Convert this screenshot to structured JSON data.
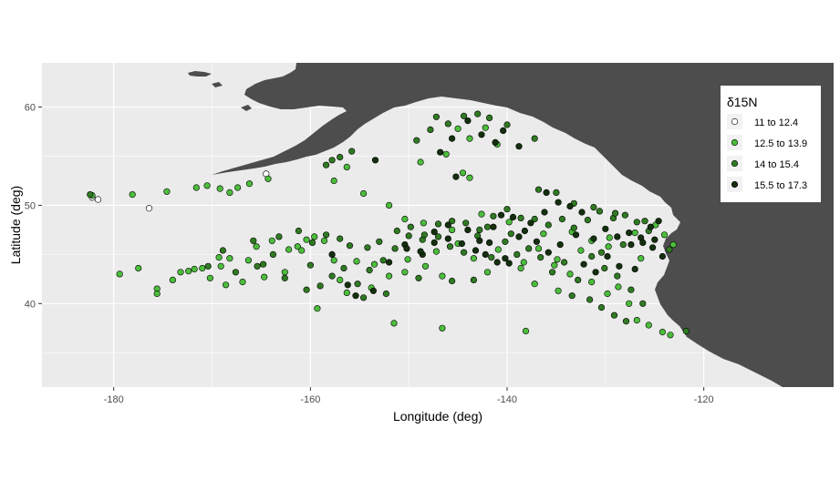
{
  "chart_data": {
    "type": "scatter",
    "title": "",
    "xlabel": "Longitude (deg)",
    "ylabel": "Latitude (deg)",
    "xlim": [
      -187.3,
      -106.8
    ],
    "ylim": [
      31.5,
      64.5
    ],
    "x_ticks": [
      -180,
      -160,
      -140,
      -120
    ],
    "x_tick_labels": [
      "-180",
      "-160",
      "-140",
      "-120"
    ],
    "y_ticks": [
      40,
      50,
      60
    ],
    "y_tick_labels": [
      "40",
      "50",
      "60"
    ],
    "grid": true,
    "panel_background": "#ebebeb",
    "land_color": "#4d4d4d",
    "legend": {
      "title": "δ15N",
      "placement": "right-inside-top",
      "entries": [
        {
          "label": "11 to 12.4",
          "color": "#ffffff"
        },
        {
          "label": "12.5 to 13.9",
          "color": "#4cbd3c"
        },
        {
          "label": "14 to 15.4",
          "color": "#2f7a22"
        },
        {
          "label": "15.5 to 17.3",
          "color": "#14300e"
        }
      ]
    },
    "series": [
      {
        "name": "11 to 12.4",
        "color": "#ffffff",
        "points": [
          [
            -182.2,
            50.8
          ],
          [
            -181.6,
            50.6
          ],
          [
            -176.4,
            49.7
          ],
          [
            -164.5,
            53.2
          ]
        ]
      },
      {
        "name": "12.5 to 13.9",
        "color": "#4cbd3c",
        "points": [
          [
            -182.2,
            51.0
          ],
          [
            -178.1,
            51.1
          ],
          [
            -174.6,
            51.4
          ],
          [
            -171.6,
            51.8
          ],
          [
            -170.5,
            52.0
          ],
          [
            -169.2,
            51.7
          ],
          [
            -168.2,
            51.3
          ],
          [
            -167.4,
            51.8
          ],
          [
            -166.2,
            52.2
          ],
          [
            -164.3,
            52.7
          ],
          [
            -179.4,
            43.0
          ],
          [
            -177.5,
            43.6
          ],
          [
            -175.6,
            41.5
          ],
          [
            -175.6,
            41.0
          ],
          [
            -174.0,
            42.4
          ],
          [
            -173.2,
            43.2
          ],
          [
            -171.8,
            43.5
          ],
          [
            -171.0,
            43.6
          ],
          [
            -169.3,
            44.7
          ],
          [
            -168.2,
            44.6
          ],
          [
            -166.3,
            44.4
          ],
          [
            -165.5,
            45.8
          ],
          [
            -163.9,
            46.4
          ],
          [
            -162.2,
            45.5
          ],
          [
            -161.3,
            45.8
          ],
          [
            -160.4,
            46.5
          ],
          [
            -159.6,
            46.8
          ],
          [
            -158.6,
            46.4
          ],
          [
            -157.6,
            44.4
          ],
          [
            -157.0,
            42.4
          ],
          [
            -155.3,
            44.3
          ],
          [
            -153.5,
            44.0
          ],
          [
            -152.0,
            42.8
          ],
          [
            -150.4,
            43.2
          ],
          [
            -148.3,
            43.8
          ],
          [
            -146.6,
            42.8
          ],
          [
            -143.4,
            44.6
          ],
          [
            -142.0,
            43.2
          ],
          [
            -138.6,
            43.6
          ],
          [
            -137.2,
            42.0
          ],
          [
            -135.2,
            43.9
          ],
          [
            -133.6,
            43.0
          ],
          [
            -131.4,
            42.2
          ],
          [
            -129.8,
            41.0
          ],
          [
            -128.7,
            41.7
          ],
          [
            -127.6,
            40.0
          ],
          [
            -126.8,
            38.3
          ],
          [
            -125.6,
            37.8
          ],
          [
            -124.2,
            37.1
          ],
          [
            -123.4,
            36.8
          ],
          [
            -151.5,
            38.0
          ],
          [
            -146.6,
            37.5
          ],
          [
            -138.1,
            37.2
          ],
          [
            -159.3,
            39.5
          ],
          [
            -152.0,
            50.0
          ],
          [
            -150.4,
            48.6
          ],
          [
            -148.5,
            48.2
          ],
          [
            -145.6,
            47.5
          ],
          [
            -142.6,
            49.1
          ],
          [
            -139.8,
            48.3
          ],
          [
            -136.3,
            47.1
          ],
          [
            -133.4,
            47.3
          ],
          [
            -131.4,
            46.4
          ],
          [
            -129.6,
            46.7
          ],
          [
            -127.0,
            47.2
          ],
          [
            -124.9,
            48.0
          ],
          [
            -124.0,
            47.0
          ],
          [
            -123.1,
            46.0
          ],
          [
            -148.8,
            54.4
          ],
          [
            -146.2,
            55.2
          ],
          [
            -145.0,
            57.8
          ],
          [
            -143.8,
            56.8
          ],
          [
            -142.2,
            57.9
          ],
          [
            -141.0,
            56.2
          ],
          [
            -154.6,
            51.2
          ],
          [
            -156.3,
            53.9
          ],
          [
            -157.6,
            52.5
          ],
          [
            -160.9,
            45.4
          ],
          [
            -162.6,
            43.2
          ],
          [
            -164.7,
            42.7
          ],
          [
            -166.9,
            42.2
          ],
          [
            -168.6,
            41.9
          ],
          [
            -170.2,
            42.6
          ],
          [
            -172.4,
            43.3
          ],
          [
            -143.8,
            52.8
          ],
          [
            -144.5,
            53.3
          ],
          [
            -156.3,
            41.1
          ],
          [
            -153.8,
            41.6
          ],
          [
            -150.1,
            44.5
          ],
          [
            -147.2,
            45.3
          ],
          [
            -145.0,
            46.1
          ],
          [
            -140.9,
            45.5
          ],
          [
            -138.3,
            44.2
          ],
          [
            -134.9,
            44.5
          ],
          [
            -132.5,
            45.4
          ],
          [
            -129.7,
            45.8
          ],
          [
            -126.4,
            44.6
          ],
          [
            -134.8,
            41.3
          ],
          [
            -136.8,
            45.6
          ],
          [
            -169.1,
            43.8
          ]
        ]
      },
      {
        "name": "14 to 15.4",
        "color": "#2f7a22",
        "points": [
          [
            -182.4,
            51.1
          ],
          [
            -165.8,
            46.4
          ],
          [
            -164.8,
            44.0
          ],
          [
            -163.2,
            46.8
          ],
          [
            -161.2,
            47.4
          ],
          [
            -159.8,
            46.2
          ],
          [
            -158.4,
            47.0
          ],
          [
            -157.0,
            46.6
          ],
          [
            -156.0,
            45.9
          ],
          [
            -154.2,
            45.7
          ],
          [
            -153.0,
            46.3
          ],
          [
            -151.4,
            45.6
          ],
          [
            -150.0,
            46.9
          ],
          [
            -148.6,
            46.5
          ],
          [
            -147.0,
            46.8
          ],
          [
            -145.8,
            45.8
          ],
          [
            -144.4,
            45.2
          ],
          [
            -143.0,
            46.9
          ],
          [
            -141.6,
            44.7
          ],
          [
            -140.2,
            46.3
          ],
          [
            -139.0,
            45.0
          ],
          [
            -137.8,
            45.6
          ],
          [
            -136.6,
            44.7
          ],
          [
            -135.4,
            43.2
          ],
          [
            -134.2,
            44.2
          ],
          [
            -132.8,
            42.4
          ],
          [
            -131.4,
            44.8
          ],
          [
            -130.1,
            43.6
          ],
          [
            -128.8,
            42.8
          ],
          [
            -127.4,
            41.4
          ],
          [
            -126.2,
            40.0
          ],
          [
            -131.6,
            40.4
          ],
          [
            -130.4,
            39.6
          ],
          [
            -129.1,
            38.8
          ],
          [
            -127.9,
            38.2
          ],
          [
            -160.4,
            41.4
          ],
          [
            -159.0,
            41.8
          ],
          [
            -157.8,
            42.8
          ],
          [
            -156.6,
            43.6
          ],
          [
            -155.2,
            42.0
          ],
          [
            -154.0,
            43.4
          ],
          [
            -152.6,
            44.4
          ],
          [
            -151.2,
            47.4
          ],
          [
            -149.8,
            47.8
          ],
          [
            -148.4,
            47.0
          ],
          [
            -147.0,
            48.1
          ],
          [
            -145.6,
            48.4
          ],
          [
            -144.2,
            48.2
          ],
          [
            -142.8,
            47.5
          ],
          [
            -141.4,
            48.9
          ],
          [
            -140.0,
            49.6
          ],
          [
            -138.6,
            48.7
          ],
          [
            -137.2,
            48.6
          ],
          [
            -135.8,
            48.0
          ],
          [
            -134.4,
            48.6
          ],
          [
            -133.2,
            47.7
          ],
          [
            -131.8,
            48.5
          ],
          [
            -130.6,
            49.4
          ],
          [
            -129.2,
            48.7
          ],
          [
            -128.0,
            49.0
          ],
          [
            -126.8,
            48.3
          ],
          [
            -125.6,
            47.4
          ],
          [
            -157.8,
            54.6
          ],
          [
            -157.0,
            54.9
          ],
          [
            -155.8,
            55.5
          ],
          [
            -158.4,
            54.1
          ],
          [
            -147.8,
            57.7
          ],
          [
            -147.2,
            59.0
          ],
          [
            -146.0,
            58.3
          ],
          [
            -144.4,
            59.1
          ],
          [
            -143.0,
            59.3
          ],
          [
            -141.8,
            58.9
          ],
          [
            -140.0,
            58.2
          ],
          [
            -137.2,
            56.8
          ],
          [
            -149.2,
            56.6
          ],
          [
            -136.8,
            51.6
          ],
          [
            -135.0,
            51.3
          ],
          [
            -133.2,
            50.2
          ],
          [
            -131.2,
            49.8
          ],
          [
            -129.0,
            49.2
          ],
          [
            -126.0,
            48.4
          ],
          [
            -160.0,
            43.9
          ],
          [
            -162.6,
            42.6
          ],
          [
            -163.8,
            45.0
          ],
          [
            -165.4,
            43.8
          ],
          [
            -167.6,
            43.2
          ],
          [
            -168.9,
            45.4
          ],
          [
            -170.4,
            43.8
          ],
          [
            -145.6,
            42.3
          ],
          [
            -149.0,
            42.6
          ],
          [
            -152.3,
            41.0
          ],
          [
            -154.6,
            40.6
          ],
          [
            -143.4,
            42.4
          ],
          [
            -142.0,
            47.8
          ],
          [
            -139.6,
            47.1
          ],
          [
            -130.4,
            45.2
          ],
          [
            -128.2,
            46.0
          ],
          [
            -123.5,
            45.5
          ],
          [
            -121.8,
            37.2
          ],
          [
            -133.4,
            40.8
          ]
        ]
      },
      {
        "name": "15.5 to 17.3",
        "color": "#14300e",
        "points": [
          [
            -157.8,
            45.0
          ],
          [
            -156.2,
            41.9
          ],
          [
            -155.4,
            40.8
          ],
          [
            -153.6,
            41.3
          ],
          [
            -152.0,
            44.2
          ],
          [
            -150.4,
            46.0
          ],
          [
            -148.6,
            45.0
          ],
          [
            -147.4,
            47.3
          ],
          [
            -146.0,
            48.0
          ],
          [
            -144.0,
            47.5
          ],
          [
            -142.8,
            46.4
          ],
          [
            -141.4,
            47.8
          ],
          [
            -140.2,
            44.6
          ],
          [
            -138.8,
            46.8
          ],
          [
            -137.6,
            48.2
          ],
          [
            -136.2,
            49.3
          ],
          [
            -134.8,
            50.3
          ],
          [
            -133.6,
            49.9
          ],
          [
            -132.4,
            49.3
          ],
          [
            -131.2,
            46.6
          ],
          [
            -130.0,
            47.6
          ],
          [
            -128.8,
            46.8
          ],
          [
            -127.6,
            47.2
          ],
          [
            -126.4,
            46.7
          ],
          [
            -125.4,
            47.8
          ],
          [
            -124.6,
            48.4
          ],
          [
            -126.2,
            46.2
          ],
          [
            -127.4,
            46.0
          ],
          [
            -128.6,
            43.8
          ],
          [
            -129.8,
            44.8
          ],
          [
            -131.0,
            43.2
          ],
          [
            -132.2,
            44.0
          ],
          [
            -145.6,
            56.8
          ],
          [
            -146.8,
            55.4
          ],
          [
            -144.0,
            58.6
          ],
          [
            -142.6,
            57.2
          ],
          [
            -141.2,
            56.4
          ],
          [
            -140.4,
            57.6
          ],
          [
            -138.8,
            56.0
          ],
          [
            -153.4,
            54.6
          ],
          [
            -145.2,
            52.9
          ],
          [
            -136.0,
            51.3
          ],
          [
            -133.0,
            47.0
          ],
          [
            -134.6,
            46.0
          ],
          [
            -135.8,
            45.2
          ],
          [
            -137.0,
            46.3
          ],
          [
            -138.2,
            47.4
          ],
          [
            -139.4,
            48.8
          ],
          [
            -140.6,
            49.0
          ],
          [
            -141.8,
            46.2
          ],
          [
            -143.2,
            45.4
          ],
          [
            -144.6,
            46.1
          ],
          [
            -146.0,
            46.6
          ],
          [
            -147.4,
            46.2
          ],
          [
            -148.8,
            45.3
          ],
          [
            -150.2,
            45.6
          ],
          [
            -142.2,
            45.0
          ],
          [
            -141.0,
            44.2
          ],
          [
            -139.8,
            44.1
          ],
          [
            -124.2,
            44.8
          ],
          [
            -125.2,
            45.7
          ],
          [
            -127.0,
            43.5
          ],
          [
            -125.0,
            46.5
          ]
        ]
      }
    ]
  }
}
